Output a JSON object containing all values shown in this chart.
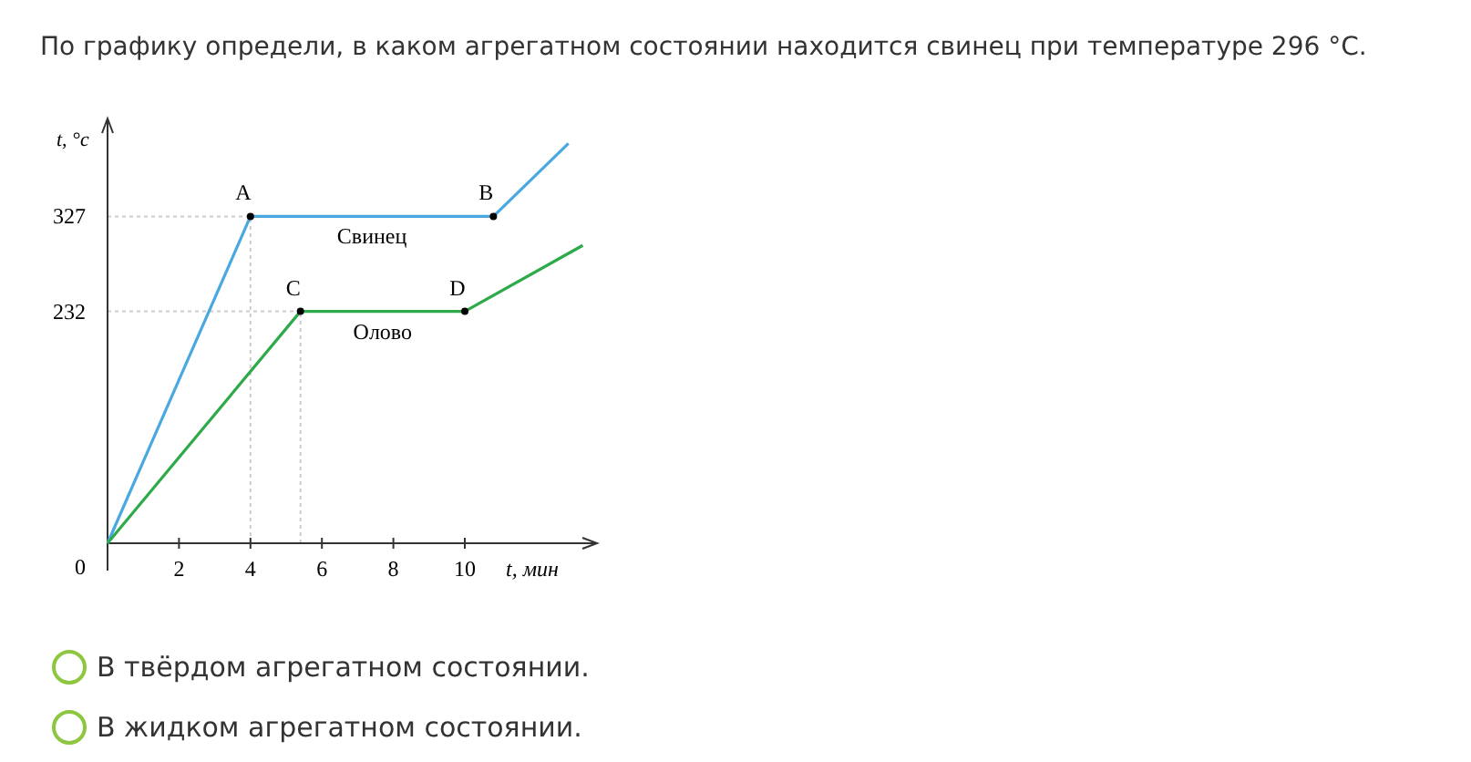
{
  "chart_data": {
    "type": "line",
    "title": "По графику определи, в каком агрегатном состоянии находится свинец при температуре 296 °C.",
    "xlabel": "t, мин",
    "ylabel": "t, °c",
    "xlim": [
      0,
      13.7
    ],
    "ylim": [
      0,
      425
    ],
    "xticks": [
      2,
      4,
      6,
      8,
      10
    ],
    "yticks": [
      0,
      232,
      327
    ],
    "series": [
      {
        "name": "Свинец",
        "color": "#4aa8e0",
        "x": [
          0,
          4,
          10.8,
          12.9
        ],
        "values": [
          0,
          327,
          327,
          400
        ]
      },
      {
        "name": "Олово",
        "color": "#2eaa4a",
        "x": [
          0,
          5.4,
          10,
          13.3
        ],
        "values": [
          0,
          232,
          232,
          298
        ]
      }
    ],
    "annotations": [
      {
        "text": "A",
        "x": 4,
        "y": 327
      },
      {
        "text": "B",
        "x": 10.8,
        "y": 327
      },
      {
        "text": "C",
        "x": 5.4,
        "y": 232
      },
      {
        "text": "D",
        "x": 10,
        "y": 232
      },
      "В твёрдом агрегатном состоянии.",
      "В жидком агрегатном состоянии."
    ],
    "ref_lines": [
      {
        "axis": "y",
        "value": 327,
        "color": "#cccccc",
        "line_style": "dotted"
      },
      {
        "axis": "y",
        "value": 232,
        "color": "#cccccc",
        "line_style": "dotted"
      },
      {
        "axis": "x",
        "value": 4,
        "color": "#cccccc",
        "line_style": "dotted"
      },
      {
        "axis": "x",
        "value": 5.4,
        "color": "#cccccc",
        "line_style": "dotted"
      }
    ],
    "grid": false
  }
}
